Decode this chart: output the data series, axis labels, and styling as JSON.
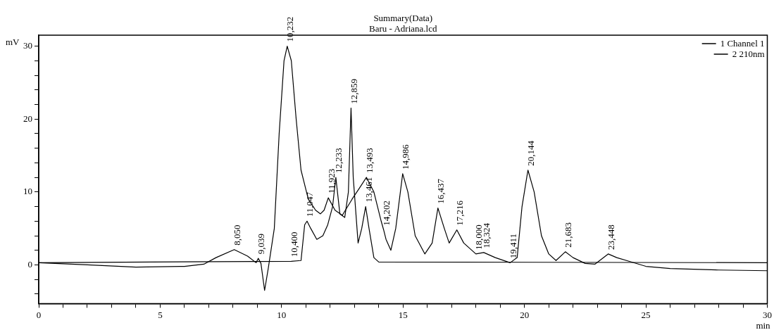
{
  "chart_data": {
    "type": "line",
    "title": "Summary(Data)",
    "subtitle": "Baru - Adriana.lcd",
    "xlabel": "min",
    "ylabel": "mV",
    "xlim": [
      0,
      30
    ],
    "ylim": [
      -5.3,
      31.5
    ],
    "xticks": [
      0,
      {
        "value": 1,
        "label": null
      },
      {
        "value": 2,
        "label": null
      },
      {
        "value": 3,
        "label": null
      },
      {
        "value": 4,
        "label": null
      },
      5,
      {
        "value": 6,
        "label": null
      },
      {
        "value": 7,
        "label": null
      },
      {
        "value": 8,
        "label": null
      },
      {
        "value": 9,
        "label": null
      },
      10,
      {
        "value": 11,
        "label": null
      },
      {
        "value": 12,
        "label": null
      },
      {
        "value": 13,
        "label": null
      },
      {
        "value": 14,
        "label": null
      },
      15,
      {
        "value": 16,
        "label": null
      },
      {
        "value": 17,
        "label": null
      },
      {
        "value": 18,
        "label": null
      },
      {
        "value": 19,
        "label": null
      },
      20,
      {
        "value": 21,
        "label": null
      },
      {
        "value": 22,
        "label": null
      },
      {
        "value": 23,
        "label": null
      },
      {
        "value": 24,
        "label": null
      },
      25,
      {
        "value": 26,
        "label": null
      },
      {
        "value": 27,
        "label": null
      },
      {
        "value": 28,
        "label": null
      },
      {
        "value": 29,
        "label": null
      },
      30
    ],
    "yticks": [
      {
        "value": -4,
        "label": null
      },
      {
        "value": -2,
        "label": null
      },
      0,
      {
        "value": 2,
        "label": null
      },
      {
        "value": 4,
        "label": null
      },
      {
        "value": 6,
        "label": null
      },
      {
        "value": 8,
        "label": null
      },
      10,
      {
        "value": 12,
        "label": null
      },
      {
        "value": 14,
        "label": null
      },
      {
        "value": 16,
        "label": null
      },
      {
        "value": 18,
        "label": null
      },
      20,
      {
        "value": 22,
        "label": null
      },
      {
        "value": 24,
        "label": null
      },
      {
        "value": 26,
        "label": null
      },
      {
        "value": 28,
        "label": null
      },
      30
    ],
    "grid": false,
    "legend": "top right",
    "marker": "none",
    "line_style": "solid",
    "series": [
      {
        "name": "1 Channel 1",
        "color": "#000000",
        "x": [
          0,
          2,
          4,
          6,
          6.8,
          7.3,
          8.05,
          8.6,
          8.95,
          9.039,
          9.15,
          9.3,
          9.45,
          9.7,
          9.9,
          10.1,
          10.232,
          10.4,
          10.6,
          10.8,
          11.1,
          11.4,
          11.6,
          11.75,
          11.923,
          12.2,
          12.5,
          12.9,
          13.2,
          13.493,
          13.8,
          14.1,
          14.202,
          14.3,
          14.5,
          14.7,
          14.986,
          15.2,
          15.5,
          15.9,
          16.2,
          16.437,
          16.7,
          16.9,
          17.216,
          17.5,
          18.0,
          18.324,
          18.8,
          19.411,
          19.7,
          19.9,
          20.144,
          20.4,
          20.7,
          21,
          21.3,
          21.683,
          22,
          22.5,
          22.9,
          23.448,
          23.8,
          24.3,
          25,
          26,
          28,
          30
        ],
        "values": [
          0.3,
          0,
          -0.3,
          -0.2,
          0.1,
          1,
          2.1,
          1.2,
          0.3,
          0.9,
          0.2,
          -3.5,
          -0.5,
          5,
          18,
          28,
          30,
          28,
          20,
          13,
          9,
          7.5,
          7,
          7.5,
          9.2,
          7.5,
          6.8,
          9,
          10.5,
          12,
          10,
          6,
          4.8,
          3.5,
          2,
          5,
          12.5,
          10,
          4,
          1.5,
          3,
          7.8,
          5,
          3,
          4.8,
          3,
          1.5,
          1.7,
          1,
          0.3,
          1,
          8,
          13,
          10,
          4,
          1.5,
          0.6,
          1.8,
          1,
          0.2,
          0.1,
          1.5,
          1,
          0.5,
          -0.2,
          -0.5,
          -0.7,
          -0.8
        ]
      },
      {
        "name": "2 210nm",
        "color": "#000000",
        "x": [
          0,
          10.4,
          10.8,
          10.95,
          11.047,
          11.2,
          11.45,
          11.7,
          11.9,
          12.1,
          12.233,
          12.4,
          12.6,
          12.75,
          12.859,
          12.95,
          13.15,
          13.3,
          13.461,
          13.6,
          13.8,
          14,
          30
        ],
        "values": [
          0.3,
          0.5,
          0.6,
          5.5,
          6,
          5,
          3.5,
          4,
          5.5,
          8,
          12,
          7,
          6.5,
          10,
          21.5,
          12,
          3,
          5,
          8,
          5,
          1,
          0.4,
          0.3
        ]
      }
    ],
    "annotations": [
      {
        "text": "8,050",
        "x": 8.05,
        "y": 2.1
      },
      {
        "text": "9,039",
        "x": 9.039,
        "y": 0.9
      },
      {
        "text": "10,232",
        "x": 10.232,
        "y": 30
      },
      {
        "text": "10,400",
        "x": 10.4,
        "y": 0.5
      },
      {
        "text": "11,047",
        "x": 11.047,
        "y": 6
      },
      {
        "text": "11,923",
        "x": 11.923,
        "y": 9.2
      },
      {
        "text": "12,233",
        "x": 12.233,
        "y": 12
      },
      {
        "text": "12,859",
        "x": 12.859,
        "y": 21.5
      },
      {
        "text": "13,461",
        "x": 13.461,
        "y": 8
      },
      {
        "text": "13,493",
        "x": 13.493,
        "y": 12
      },
      {
        "text": "14,202",
        "x": 14.202,
        "y": 4.8
      },
      {
        "text": "14,986",
        "x": 14.986,
        "y": 12.5
      },
      {
        "text": "16,437",
        "x": 16.437,
        "y": 7.8
      },
      {
        "text": "17,216",
        "x": 17.216,
        "y": 4.8
      },
      {
        "text": "18,000",
        "x": 18.0,
        "y": 1.5
      },
      {
        "text": "18,324",
        "x": 18.324,
        "y": 1.7
      },
      {
        "text": "19,411",
        "x": 19.411,
        "y": 0.3
      },
      {
        "text": "20,144",
        "x": 20.144,
        "y": 13
      },
      {
        "text": "21,683",
        "x": 21.683,
        "y": 1.8
      },
      {
        "text": "23,448",
        "x": 23.448,
        "y": 1.5
      }
    ]
  }
}
